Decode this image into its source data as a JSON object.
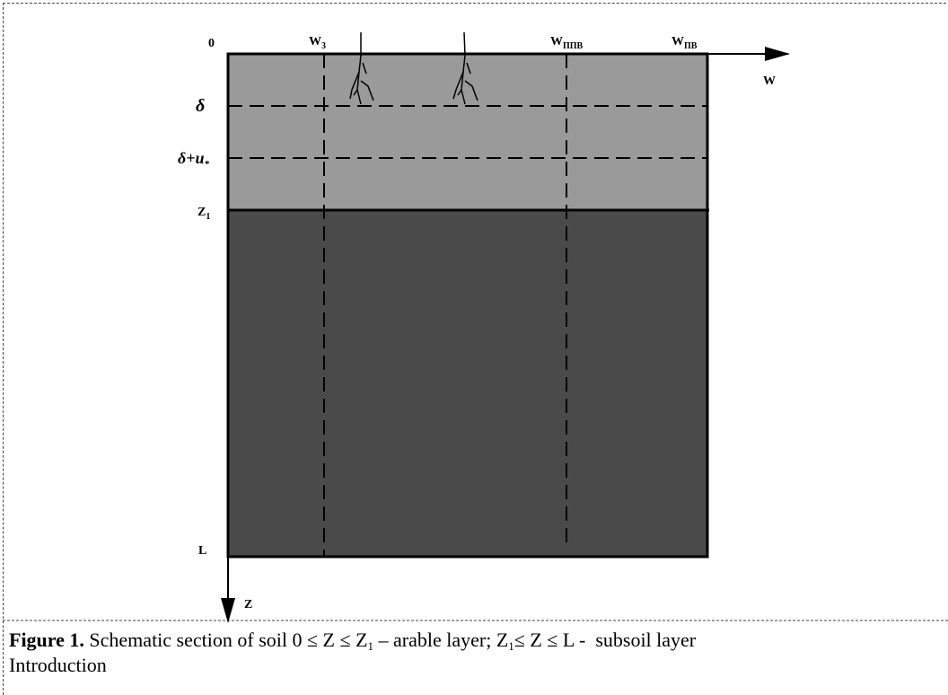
{
  "figure": {
    "labels": {
      "origin": "0",
      "w3": {
        "base": "W",
        "sub": "3"
      },
      "wppv": {
        "base": "W",
        "sub": "ППВ"
      },
      "wpv": {
        "base": "W",
        "sub": "ПВ"
      },
      "w_axis": "W",
      "delta": "δ",
      "delta_u": {
        "base": "δ+u",
        "sub": "*"
      },
      "z1": {
        "base": "Z",
        "sub": "1"
      },
      "l": "L",
      "z_axis": "Z"
    },
    "caption": {
      "label": "Figure 1.",
      "parts": [
        "Schematic section of soil 0 ≤ Z ≤ Z",
        "1",
        " – arable layer; Z",
        "1",
        "≤ Z ≤ L -  subsoil layer"
      ]
    }
  },
  "body": {
    "heading": "Introduction"
  }
}
